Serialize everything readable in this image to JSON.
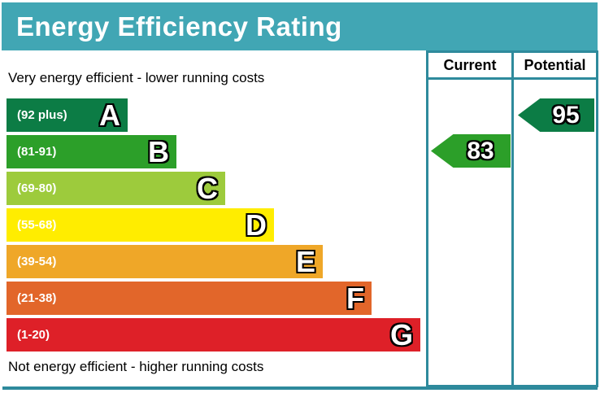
{
  "title": "Energy Efficiency Rating",
  "columns": {
    "current": "Current",
    "potential": "Potential"
  },
  "notes": {
    "top": "Very energy efficient - lower running costs",
    "bottom": "Not energy efficient - higher running costs"
  },
  "bands": [
    {
      "letter": "A",
      "range": "(92 plus)",
      "color": "#0c7c45"
    },
    {
      "letter": "B",
      "range": "(81-91)",
      "color": "#2c9f29"
    },
    {
      "letter": "C",
      "range": "(69-80)",
      "color": "#9dcb3c"
    },
    {
      "letter": "D",
      "range": "(55-68)",
      "color": "#ffed00"
    },
    {
      "letter": "E",
      "range": "(39-54)",
      "color": "#efa728"
    },
    {
      "letter": "F",
      "range": "(21-38)",
      "color": "#e2662a"
    },
    {
      "letter": "G",
      "range": "(1-20)",
      "color": "#de2028"
    }
  ],
  "ratings": {
    "current": {
      "value": "83",
      "band": "B",
      "color": "#2c9f29"
    },
    "potential": {
      "value": "95",
      "band": "A",
      "color": "#0c7c45"
    }
  },
  "colors": {
    "header_bg": "#41a6b4",
    "border": "#2e8a9c",
    "title_text": "#ffffff",
    "body_text": "#000000"
  },
  "chart_data": {
    "type": "bar",
    "orientation": "horizontal",
    "title": "Energy Efficiency Rating",
    "categories": [
      "A",
      "B",
      "C",
      "D",
      "E",
      "F",
      "G"
    ],
    "band_ranges": [
      "92 plus",
      "81-91",
      "69-80",
      "55-68",
      "39-54",
      "21-38",
      "1-20"
    ],
    "band_colors": [
      "#0c7c45",
      "#2c9f29",
      "#9dcb3c",
      "#ffed00",
      "#efa728",
      "#e2662a",
      "#de2028"
    ],
    "bar_relative_widths": [
      149,
      209,
      269,
      329,
      389,
      449,
      509
    ],
    "scale_note_top": "Very energy efficient - lower running costs",
    "scale_note_bottom": "Not energy efficient - higher running costs",
    "current_rating": 83,
    "current_band": "B",
    "potential_rating": 95,
    "potential_band": "A",
    "legend_position": "right-columns",
    "grid": false
  }
}
